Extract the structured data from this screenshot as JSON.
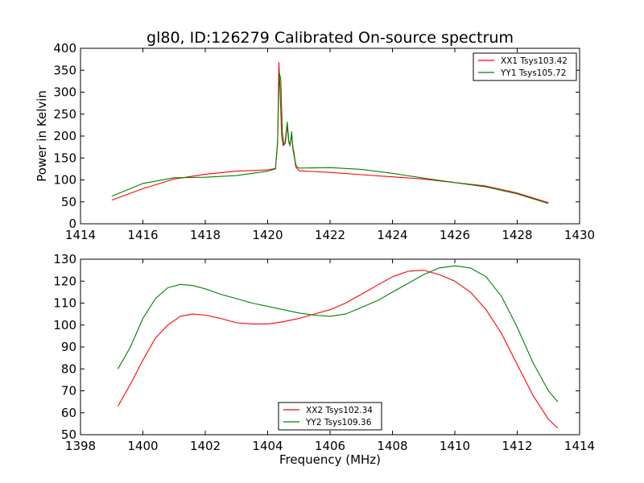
{
  "figure": {
    "title": "gl80, ID:126279 Calibrated On-source spectrum"
  },
  "chart_data": [
    {
      "type": "line",
      "title": "gl80, ID:126279 Calibrated On-source spectrum",
      "xlabel": "",
      "ylabel": "Power in Kelvin",
      "xlim": [
        1414,
        1430
      ],
      "ylim": [
        0,
        400
      ],
      "xticks": [
        1414,
        1416,
        1418,
        1420,
        1422,
        1424,
        1426,
        1428,
        1430
      ],
      "yticks": [
        0,
        50,
        100,
        150,
        200,
        250,
        300,
        350,
        400
      ],
      "grid": false,
      "legend_position": "top-right",
      "series": [
        {
          "name": "XX1 Tsys103.42",
          "color": "#ff0000",
          "x": [
            1415.0,
            1416.0,
            1417.0,
            1418.0,
            1419.0,
            1420.0,
            1420.25,
            1420.32,
            1420.36,
            1420.4,
            1420.45,
            1420.5,
            1420.55,
            1420.62,
            1420.67,
            1420.72,
            1420.77,
            1420.81,
            1420.85,
            1420.9,
            1421.0,
            1422.0,
            1423.0,
            1424.0,
            1425.0,
            1426.0,
            1427.0,
            1428.0,
            1429.0
          ],
          "y": [
            54,
            80,
            102,
            113,
            120,
            123,
            126,
            185,
            368,
            300,
            200,
            178,
            182,
            225,
            190,
            180,
            203,
            175,
            160,
            130,
            121,
            117,
            112,
            107,
            102,
            94,
            86,
            70,
            48
          ]
        },
        {
          "name": "YY1 Tsys105.72",
          "color": "#008000",
          "x": [
            1415.0,
            1416.0,
            1417.0,
            1418.0,
            1419.0,
            1420.0,
            1420.25,
            1420.32,
            1420.37,
            1420.42,
            1420.47,
            1420.52,
            1420.57,
            1420.63,
            1420.68,
            1420.72,
            1420.77,
            1420.81,
            1420.86,
            1420.92,
            1421.0,
            1422.0,
            1423.0,
            1424.0,
            1425.0,
            1426.0,
            1427.0,
            1428.0,
            1429.0
          ],
          "y": [
            63,
            92,
            105,
            106,
            110,
            120,
            125,
            190,
            345,
            330,
            210,
            180,
            185,
            232,
            185,
            178,
            210,
            170,
            150,
            131,
            127,
            128,
            124,
            115,
            104,
            94,
            84,
            68,
            46
          ]
        }
      ]
    },
    {
      "type": "line",
      "title": "",
      "xlabel": "Frequency (MHz)",
      "ylabel": "",
      "xlim": [
        1398,
        1414
      ],
      "ylim": [
        50,
        130
      ],
      "xticks": [
        1398,
        1400,
        1402,
        1404,
        1406,
        1408,
        1410,
        1412,
        1414
      ],
      "yticks": [
        50,
        60,
        70,
        80,
        90,
        100,
        110,
        120,
        130
      ],
      "grid": false,
      "legend_position": "bottom-center",
      "series": [
        {
          "name": "XX2 Tsys102.34",
          "color": "#ff0000",
          "x": [
            1399.2,
            1399.6,
            1400.0,
            1400.4,
            1400.8,
            1401.2,
            1401.6,
            1402.0,
            1402.5,
            1403.0,
            1403.5,
            1404.0,
            1404.5,
            1405.0,
            1405.5,
            1406.0,
            1406.5,
            1407.0,
            1407.5,
            1408.0,
            1408.5,
            1409.0,
            1409.5,
            1410.0,
            1410.5,
            1411.0,
            1411.5,
            1412.0,
            1412.5,
            1413.0,
            1413.3
          ],
          "y": [
            63,
            73,
            84,
            94,
            100,
            104,
            105,
            104.5,
            103,
            101,
            100.5,
            100.5,
            101.5,
            103,
            105,
            107,
            110,
            114,
            118,
            122,
            124.5,
            125,
            123,
            120,
            115,
            107,
            96,
            82,
            68,
            57,
            53
          ]
        },
        {
          "name": "YY2 Tsys109.36",
          "color": "#008000",
          "x": [
            1399.2,
            1399.6,
            1400.0,
            1400.4,
            1400.8,
            1401.2,
            1401.6,
            1402.0,
            1402.5,
            1403.0,
            1403.5,
            1404.0,
            1404.5,
            1405.0,
            1405.5,
            1406.0,
            1406.5,
            1407.0,
            1407.5,
            1408.0,
            1408.5,
            1409.0,
            1409.5,
            1410.0,
            1410.5,
            1411.0,
            1411.5,
            1412.0,
            1412.5,
            1413.0,
            1413.3
          ],
          "y": [
            80,
            90,
            103,
            112,
            117,
            118.5,
            118,
            116.5,
            114,
            112,
            110,
            108.5,
            107,
            105.5,
            104.5,
            104,
            105,
            108,
            111,
            115,
            119,
            123,
            126,
            127,
            126,
            122,
            113,
            99,
            83,
            70,
            65
          ]
        }
      ]
    }
  ]
}
